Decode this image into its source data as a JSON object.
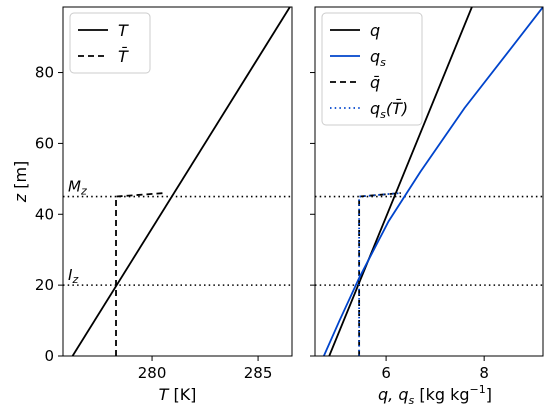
{
  "chart_data": [
    {
      "type": "line",
      "xlabel": "T [K]",
      "ylabel": "z [m]",
      "xlim": [
        275.8,
        286.6
      ],
      "ylim": [
        0,
        98.5
      ],
      "xticks": [
        280,
        285
      ],
      "yticks": [
        0,
        20,
        40,
        60,
        80
      ],
      "ytick_labels": [
        "0",
        "20",
        "40",
        "60",
        "80"
      ],
      "xtick_labels": [
        "280",
        "285"
      ],
      "legend": {
        "placement": "top-left",
        "entries": [
          "T",
          "T̄"
        ]
      },
      "annotations": [
        {
          "text": "M_z",
          "display": "Mz",
          "z": 45
        },
        {
          "text": "I_z",
          "display": "Iz",
          "z": 20
        }
      ],
      "hlines": [
        45,
        20
      ],
      "series": [
        {
          "name": "T",
          "style": "solid",
          "color": "#000000",
          "x": [
            276.25,
            286.5
          ],
          "y": [
            0,
            98.5
          ]
        },
        {
          "name": "T̄",
          "style": "dashed",
          "color": "#000000",
          "x": [
            278.3,
            278.3,
            280.6
          ],
          "y": [
            0,
            45,
            46
          ]
        }
      ]
    },
    {
      "type": "line",
      "xlabel": "q, q_s [kg kg⁻¹]",
      "xlabel_display": {
        "main": "q, q",
        "sub": "s",
        "rest": " [kg kg",
        "sup": "−1",
        "end": "]"
      },
      "xlim": [
        4.55,
        9.2
      ],
      "ylim": [
        0,
        98.5
      ],
      "xticks": [
        6,
        8
      ],
      "xtick_labels": [
        "6",
        "8"
      ],
      "yticks": [
        0,
        20,
        40,
        60,
        80
      ],
      "legend": {
        "placement": "top-left",
        "entries": [
          "q",
          "q_s",
          "q̄",
          "q_s(T̄)"
        ]
      },
      "hlines": [
        45,
        20
      ],
      "series": [
        {
          "name": "q",
          "style": "solid",
          "color": "#000000",
          "x": [
            4.84,
            7.75
          ],
          "y": [
            0,
            98.5
          ]
        },
        {
          "name": "q_s",
          "style": "solid",
          "color": "#0044cc",
          "x": [
            4.73,
            5.05,
            5.45,
            6.05,
            6.7,
            7.6,
            8.5,
            9.2
          ],
          "y": [
            0,
            10,
            22,
            38,
            52,
            70,
            86,
            98.5
          ]
        },
        {
          "name": "q̄",
          "style": "dashed",
          "color": "#000000",
          "x": [
            5.45,
            5.45,
            6.3
          ],
          "y": [
            0,
            45,
            46
          ]
        },
        {
          "name": "q_s(T̄)",
          "style": "dotted",
          "color": "#0044cc",
          "x": [
            5.45,
            5.45,
            6.3
          ],
          "y": [
            0,
            45,
            46
          ]
        }
      ]
    }
  ]
}
